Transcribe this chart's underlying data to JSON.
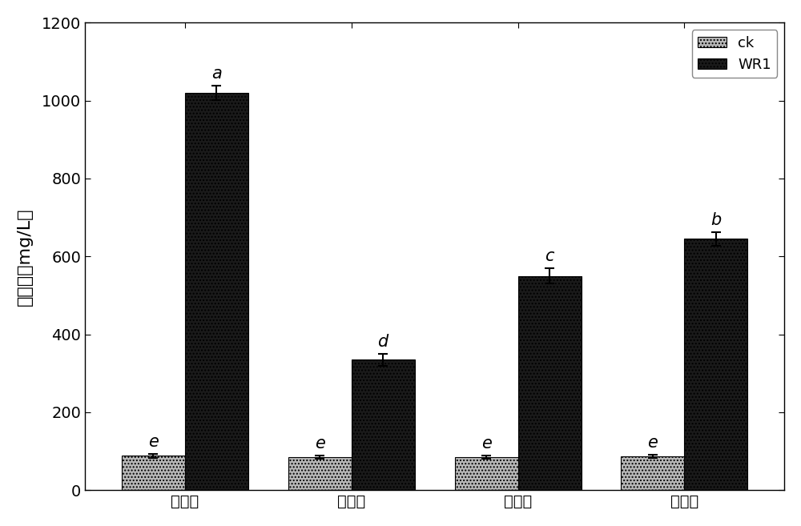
{
  "categories": [
    "磷酸钓",
    "磷酸铁",
    "磷酸锹",
    "植酸钓"
  ],
  "ck_values": [
    88,
    85,
    85,
    87
  ],
  "wr1_values": [
    1020,
    335,
    550,
    645
  ],
  "ck_errors": [
    5,
    5,
    5,
    5
  ],
  "wr1_errors": [
    18,
    15,
    20,
    18
  ],
  "ck_color": "#b8b8b8",
  "wr1_color": "#1a1a1a",
  "ck_hatch": "....",
  "wr1_hatch": "....",
  "ck_label": "ck",
  "wr1_label": "WR1",
  "ylabel": "解磷量（mg/L）",
  "ylim": [
    0,
    1200
  ],
  "yticks": [
    0,
    200,
    400,
    600,
    800,
    1000,
    1200
  ],
  "bar_width": 0.38,
  "ck_letter_labels": [
    "e",
    "e",
    "e",
    "e"
  ],
  "wr1_letter_labels": [
    "a",
    "d",
    "c",
    "b"
  ],
  "background_color": "#ffffff",
  "figure_facecolor": "#ffffff",
  "letter_fontsize": 15,
  "tick_fontsize": 14,
  "ylabel_fontsize": 16,
  "legend_fontsize": 13
}
